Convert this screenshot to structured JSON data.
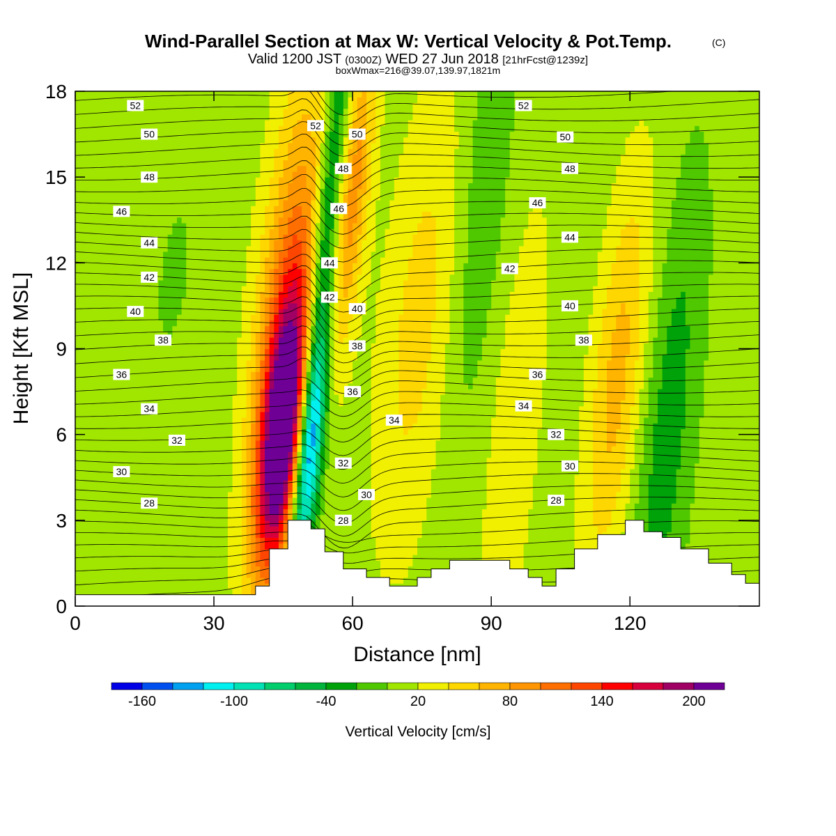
{
  "header": {
    "title": "Wind-Parallel Section at Max W: Vertical Velocity & Pot.Temp.",
    "copyright": "(C)",
    "valid_prefix": "Valid 1200 JST",
    "valid_zulu": "(0300Z)",
    "valid_date": "WED 27 Jun 2018",
    "forecast": "[21hrFcst@1239z]",
    "box_info": "boxWmax=216@39.07,139.97,1821m"
  },
  "colors": {
    "levels": [
      {
        "upper": -160,
        "color": "#0000e6"
      },
      {
        "upper": -140,
        "color": "#0050f0"
      },
      {
        "upper": -120,
        "color": "#00a0f0"
      },
      {
        "upper": -100,
        "color": "#00f0f0"
      },
      {
        "upper": -80,
        "color": "#00e2b4"
      },
      {
        "upper": -60,
        "color": "#00cd6c"
      },
      {
        "upper": -40,
        "color": "#00b43c"
      },
      {
        "upper": -20,
        "color": "#00a20a"
      },
      {
        "upper": 0,
        "color": "#50c800"
      },
      {
        "upper": 20,
        "color": "#a0e600"
      },
      {
        "upper": 40,
        "color": "#f0f000"
      },
      {
        "upper": 60,
        "color": "#ffd700"
      },
      {
        "upper": 80,
        "color": "#ffb400"
      },
      {
        "upper": 100,
        "color": "#ff9600"
      },
      {
        "upper": 120,
        "color": "#ff6e00"
      },
      {
        "upper": 140,
        "color": "#ff4600"
      },
      {
        "upper": 160,
        "color": "#ff0000"
      },
      {
        "upper": 180,
        "color": "#d7003c"
      },
      {
        "upper": 200,
        "color": "#a00064"
      },
      {
        "upper": 220,
        "color": "#6e0096"
      }
    ]
  },
  "chart_data": {
    "type": "heatmap",
    "title": "Wind-Parallel Section at Max W: Vertical Velocity & Pot.Temp.",
    "xlabel": "Distance [nm]",
    "ylabel": "Height [Kft MSL]",
    "xlim": [
      0,
      148
    ],
    "ylim": [
      0,
      18
    ],
    "x_ticks": [
      0,
      30,
      60,
      90,
      120
    ],
    "y_ticks": [
      0,
      3,
      6,
      9,
      12,
      15,
      18
    ],
    "colorbar": {
      "title": "Vertical Velocity [cm/s]",
      "ticks": [
        -160,
        -100,
        -40,
        20,
        80,
        140,
        200
      ],
      "range": [
        -180,
        220
      ]
    },
    "vertical_velocity_features": [
      {
        "x": 45,
        "z": 6.0,
        "w": 216,
        "sx": 3.5,
        "sz": 3.5
      },
      {
        "x": 43.5,
        "z": 11.0,
        "w": 90,
        "sx": 5.0,
        "sz": 6.0
      },
      {
        "x": 51,
        "z": 5.5,
        "w": -150,
        "sx": 2.0,
        "sz": 3.0
      },
      {
        "x": 50,
        "z": 12.0,
        "w": -90,
        "sx": 2.2,
        "sz": 6.5
      },
      {
        "x": 55,
        "z": 14.5,
        "w": 80,
        "sx": 2.5,
        "sz": 4.0
      },
      {
        "x": 72,
        "z": 10.0,
        "w": 40,
        "sx": 6.0,
        "sz": 6.0
      },
      {
        "x": 116,
        "z": 8.0,
        "w": 60,
        "sx": 4.0,
        "sz": 5.0
      },
      {
        "x": 128,
        "z": 6.0,
        "w": -40,
        "sx": 4.0,
        "sz": 6.0
      },
      {
        "x": 83,
        "z": 14.0,
        "w": -25,
        "sx": 4.0,
        "sz": 6.0
      },
      {
        "x": 95,
        "z": 6.0,
        "w": 30,
        "sx": 4.0,
        "sz": 6.0
      },
      {
        "x": 18,
        "z": 11.5,
        "w": -20,
        "sx": 2.0,
        "sz": 1.5
      }
    ],
    "terrain_profile": {
      "x": [
        0,
        39,
        39,
        42,
        42,
        46,
        46,
        51,
        51,
        54,
        54,
        58,
        58,
        63,
        63,
        68,
        68,
        74,
        74,
        77,
        77,
        81,
        81,
        87,
        87,
        94,
        94,
        98,
        98,
        101,
        101,
        104,
        104,
        108,
        108,
        113,
        113,
        119,
        119,
        123,
        123,
        127,
        127,
        131,
        131,
        137,
        137,
        142,
        142,
        145,
        145,
        148
      ],
      "z": [
        0.4,
        0.4,
        0.7,
        0.7,
        2.0,
        2.0,
        3.0,
        3.0,
        2.7,
        2.7,
        1.9,
        1.9,
        1.3,
        1.3,
        1.0,
        1.0,
        0.7,
        0.7,
        1.0,
        1.0,
        1.3,
        1.3,
        1.6,
        1.6,
        1.6,
        1.6,
        1.3,
        1.3,
        1.0,
        1.0,
        0.7,
        0.7,
        1.3,
        1.3,
        2.0,
        2.0,
        2.5,
        2.5,
        3.0,
        3.0,
        2.6,
        2.6,
        2.4,
        2.4,
        2.0,
        2.0,
        1.5,
        1.5,
        1.1,
        1.1,
        0.8,
        0.8
      ]
    },
    "potential_temperature_contours": [
      28,
      30,
      32,
      34,
      36,
      38,
      40,
      42,
      44,
      46,
      48,
      50,
      52
    ],
    "contour_labels": [
      {
        "text": "52",
        "x": 13,
        "z": 17.5
      },
      {
        "text": "50",
        "x": 16,
        "z": 16.5
      },
      {
        "text": "48",
        "x": 16,
        "z": 15.0
      },
      {
        "text": "46",
        "x": 10,
        "z": 13.8
      },
      {
        "text": "44",
        "x": 16,
        "z": 12.7
      },
      {
        "text": "42",
        "x": 16,
        "z": 11.5
      },
      {
        "text": "40",
        "x": 13,
        "z": 10.3
      },
      {
        "text": "38",
        "x": 19,
        "z": 9.3
      },
      {
        "text": "36",
        "x": 10,
        "z": 8.1
      },
      {
        "text": "34",
        "x": 16,
        "z": 6.9
      },
      {
        "text": "32",
        "x": 22,
        "z": 5.8
      },
      {
        "text": "30",
        "x": 10,
        "z": 4.7
      },
      {
        "text": "28",
        "x": 16,
        "z": 3.6
      },
      {
        "text": "52",
        "x": 52,
        "z": 16.8
      },
      {
        "text": "50",
        "x": 61,
        "z": 16.5
      },
      {
        "text": "48",
        "x": 58,
        "z": 15.3
      },
      {
        "text": "46",
        "x": 57,
        "z": 13.9
      },
      {
        "text": "44",
        "x": 55,
        "z": 12.0
      },
      {
        "text": "42",
        "x": 55,
        "z": 10.8
      },
      {
        "text": "40",
        "x": 61,
        "z": 10.4
      },
      {
        "text": "38",
        "x": 61,
        "z": 9.1
      },
      {
        "text": "36",
        "x": 60,
        "z": 7.5
      },
      {
        "text": "34",
        "x": 69,
        "z": 6.5
      },
      {
        "text": "32",
        "x": 58,
        "z": 5.0
      },
      {
        "text": "30",
        "x": 63,
        "z": 3.9
      },
      {
        "text": "28",
        "x": 58,
        "z": 3.0
      },
      {
        "text": "52",
        "x": 97,
        "z": 17.5
      },
      {
        "text": "50",
        "x": 106,
        "z": 16.4
      },
      {
        "text": "48",
        "x": 107,
        "z": 15.3
      },
      {
        "text": "46",
        "x": 100,
        "z": 14.1
      },
      {
        "text": "44",
        "x": 107,
        "z": 12.9
      },
      {
        "text": "42",
        "x": 94,
        "z": 11.8
      },
      {
        "text": "40",
        "x": 107,
        "z": 10.5
      },
      {
        "text": "38",
        "x": 110,
        "z": 9.3
      },
      {
        "text": "36",
        "x": 100,
        "z": 8.1
      },
      {
        "text": "34",
        "x": 97,
        "z": 7.0
      },
      {
        "text": "32",
        "x": 104,
        "z": 6.0
      },
      {
        "text": "30",
        "x": 107,
        "z": 4.9
      },
      {
        "text": "28",
        "x": 104,
        "z": 3.7
      }
    ]
  }
}
